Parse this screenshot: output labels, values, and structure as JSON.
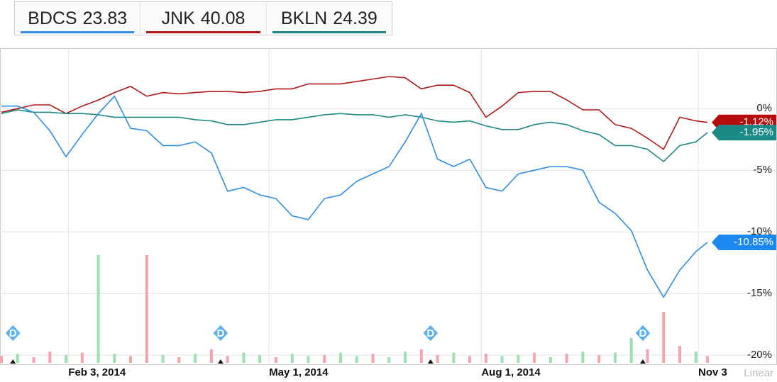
{
  "chart_data": {
    "type": "line",
    "x": [
      "2014-01-05",
      "2014-01-12",
      "2014-01-19",
      "2014-01-26",
      "2014-02-02",
      "2014-02-09",
      "2014-02-16",
      "2014-02-23",
      "2014-03-02",
      "2014-03-09",
      "2014-03-16",
      "2014-03-23",
      "2014-03-30",
      "2014-04-06",
      "2014-04-13",
      "2014-04-20",
      "2014-04-27",
      "2014-05-04",
      "2014-05-11",
      "2014-05-18",
      "2014-05-25",
      "2014-06-01",
      "2014-06-08",
      "2014-06-15",
      "2014-06-22",
      "2014-06-29",
      "2014-07-06",
      "2014-07-13",
      "2014-07-20",
      "2014-07-27",
      "2014-08-03",
      "2014-08-10",
      "2014-08-17",
      "2014-08-24",
      "2014-08-31",
      "2014-09-07",
      "2014-09-14",
      "2014-09-21",
      "2014-09-28",
      "2014-10-05",
      "2014-10-12",
      "2014-10-19",
      "2014-10-26",
      "2014-11-02",
      "2014-11-07"
    ],
    "series": [
      {
        "name": "BDCS",
        "price": 23.83,
        "color": "#2f8ee5",
        "flag_color": "#1a88f0",
        "values": [
          0.2,
          0.2,
          -0.3,
          -1.8,
          -3.9,
          -2.1,
          -0.4,
          1.0,
          -1.6,
          -1.8,
          -3.0,
          -3.0,
          -2.7,
          -3.6,
          -6.7,
          -6.4,
          -7.0,
          -7.3,
          -8.7,
          -9.0,
          -7.3,
          -7.0,
          -5.9,
          -5.3,
          -4.7,
          -2.7,
          -0.4,
          -4.1,
          -4.7,
          -4.1,
          -6.4,
          -6.7,
          -5.3,
          -5.0,
          -4.7,
          -4.7,
          -5.0,
          -7.6,
          -8.5,
          -9.9,
          -13.1,
          -15.3,
          -13.1,
          -11.6,
          -10.85
        ],
        "value_labels": [
          null,
          null,
          null,
          null,
          null,
          null,
          null,
          null,
          null,
          null,
          null,
          null,
          null,
          null,
          null,
          null,
          null,
          null,
          null,
          null,
          null,
          null,
          null,
          null,
          null,
          null,
          null,
          null,
          null,
          null,
          null,
          null,
          null,
          null,
          null,
          null,
          null,
          null,
          null,
          null,
          null,
          null,
          null,
          null,
          "-10.85%"
        ]
      },
      {
        "name": "JNK",
        "price": 40.08,
        "color": "#b01818",
        "flag_color": "#b50d0d",
        "values": [
          -0.3,
          0,
          0.3,
          0.3,
          -0.4,
          0.2,
          0.7,
          1.3,
          1.8,
          1.0,
          1.3,
          1.2,
          1.3,
          1.4,
          1.4,
          1.3,
          1.4,
          1.6,
          1.6,
          2.0,
          2.0,
          2.0,
          2.2,
          2.4,
          2.6,
          2.5,
          1.6,
          1.9,
          1.9,
          1.3,
          -0.7,
          0.2,
          1.3,
          1.4,
          1.4,
          0.7,
          -0.1,
          -0.1,
          -1.3,
          -1.6,
          -2.4,
          -3.3,
          -0.7,
          -1.0,
          -1.12
        ],
        "value_labels": [
          null,
          null,
          null,
          null,
          null,
          null,
          null,
          null,
          null,
          null,
          null,
          null,
          null,
          null,
          null,
          null,
          null,
          null,
          null,
          null,
          null,
          null,
          null,
          null,
          null,
          null,
          null,
          null,
          null,
          null,
          null,
          null,
          null,
          null,
          null,
          null,
          null,
          null,
          null,
          null,
          null,
          null,
          null,
          null,
          "-1.12%"
        ]
      },
      {
        "name": "BKLN",
        "price": 24.39,
        "color": "#1d8a85",
        "flag_color": "#1b8a86",
        "values": [
          -0.4,
          -0.1,
          -0.3,
          -0.3,
          -0.4,
          -0.4,
          -0.5,
          -0.7,
          -0.7,
          -0.7,
          -0.7,
          -0.7,
          -0.9,
          -1.0,
          -1.3,
          -1.3,
          -1.1,
          -0.9,
          -0.9,
          -0.7,
          -0.5,
          -0.4,
          -0.5,
          -0.5,
          -0.7,
          -0.5,
          -0.7,
          -1.0,
          -1.1,
          -1.0,
          -1.4,
          -1.7,
          -1.7,
          -1.3,
          -1.1,
          -1.3,
          -1.8,
          -2.1,
          -3.0,
          -3.0,
          -3.3,
          -4.3,
          -3.0,
          -2.7,
          -1.95
        ],
        "value_labels": [
          null,
          null,
          null,
          null,
          null,
          null,
          null,
          null,
          null,
          null,
          null,
          null,
          null,
          null,
          null,
          null,
          null,
          null,
          null,
          null,
          null,
          null,
          null,
          null,
          null,
          null,
          null,
          null,
          null,
          null,
          null,
          null,
          null,
          null,
          null,
          null,
          null,
          null,
          null,
          null,
          null,
          null,
          null,
          null,
          "-1.95%"
        ]
      }
    ],
    "volume": [
      6,
      8,
      5,
      10,
      7,
      9,
      95,
      8,
      6,
      95,
      7,
      5,
      8,
      12,
      6,
      9,
      7,
      5,
      8,
      6,
      7,
      9,
      6,
      8,
      5,
      10,
      12,
      7,
      9,
      6,
      8,
      6,
      7,
      9,
      5,
      8,
      10,
      7,
      9,
      22,
      12,
      45,
      15,
      10,
      6
    ],
    "volume_colors": [
      "#f4a3b0",
      "#9fe0b0",
      "#f4a3b0",
      "#f4a3b0",
      "#9fe0b0",
      "#f4a3b0",
      "#9fe0b0",
      "#9fe0b0",
      "#f4a3b0",
      "#f4a3b0",
      "#9fe0b0",
      "#f4a3b0",
      "#9fe0b0",
      "#f4a3b0",
      "#f4a3b0",
      "#9fe0b0",
      "#9fe0b0",
      "#f4a3b0",
      "#9fe0b0",
      "#9fe0b0",
      "#f4a3b0",
      "#9fe0b0",
      "#9fe0b0",
      "#f4a3b0",
      "#9fe0b0",
      "#9fe0b0",
      "#f4a3b0",
      "#f4a3b0",
      "#9fe0b0",
      "#f4a3b0",
      "#f4a3b0",
      "#9fe0b0",
      "#9fe0b0",
      "#f4a3b0",
      "#9fe0b0",
      "#f4a3b0",
      "#9fe0b0",
      "#f4a3b0",
      "#9fe0b0",
      "#9fe0b0",
      "#f4a3b0",
      "#f4a3b0",
      "#f4a3b0",
      "#9fe0b0",
      "#f4a3b0"
    ],
    "volume_lim": [
      0,
      100
    ],
    "events": [
      {
        "date": "2014-01-10",
        "label": "D"
      },
      {
        "date": "2014-04-10",
        "label": "D"
      },
      {
        "date": "2014-07-10",
        "label": "D"
      },
      {
        "date": "2014-10-10",
        "label": "D"
      }
    ],
    "xlim": [
      "2014-01-05",
      "2014-11-07"
    ],
    "xticks": [
      {
        "value": "2014-02-03",
        "label": "Feb 3, 2014"
      },
      {
        "value": "2014-05-01",
        "label": "May 1, 2014"
      },
      {
        "value": "2014-08-01",
        "label": "Aug 1, 2014"
      },
      {
        "value": "2014-11-03",
        "label": "Nov 3"
      }
    ],
    "ylim": [
      -20.8,
      4.9
    ],
    "yticks": [
      {
        "value": 0,
        "label": "0%"
      },
      {
        "value": -5,
        "label": "-5%"
      },
      {
        "value": -10,
        "label": "-10%"
      },
      {
        "value": -15,
        "label": "-15%"
      },
      {
        "value": -20,
        "label": "-20%"
      }
    ],
    "scale_label": "Linear",
    "grid": true
  }
}
